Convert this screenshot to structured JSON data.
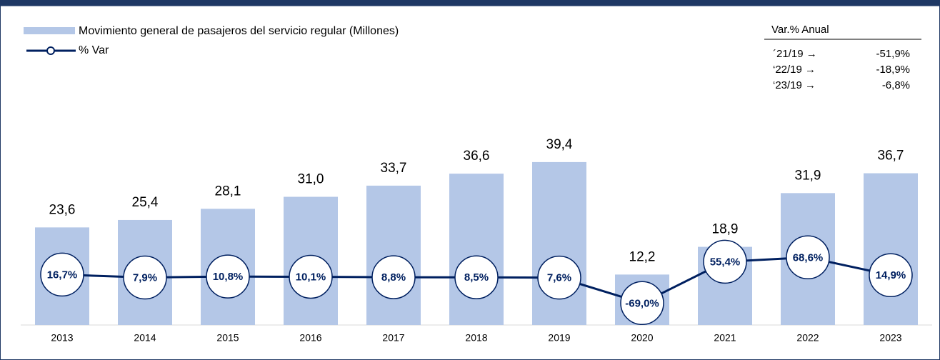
{
  "chart_data": {
    "type": "bar-line",
    "categories": [
      "2013",
      "2014",
      "2015",
      "2016",
      "2017",
      "2018",
      "2019",
      "2020",
      "2021",
      "2022",
      "2023"
    ],
    "series": [
      {
        "name": "Movimiento general de pasajeros del servicio regular (Millones)",
        "type": "bar",
        "color": "#b4c7e7",
        "values": [
          23.6,
          25.4,
          28.1,
          31.0,
          33.7,
          36.6,
          39.4,
          12.2,
          18.9,
          31.9,
          36.7
        ],
        "value_labels": [
          "23,6",
          "25,4",
          "28,1",
          "31,0",
          "33,7",
          "36,6",
          "39,4",
          "12,2",
          "18,9",
          "31,9",
          "36,7"
        ]
      },
      {
        "name": "% Var",
        "type": "line",
        "axis": "y2",
        "color": "#002060",
        "values": [
          16.7,
          7.9,
          10.8,
          10.1,
          8.8,
          8.5,
          7.6,
          -69.0,
          55.4,
          68.6,
          14.9
        ],
        "value_labels": [
          "16,7%",
          "7,9%",
          "10,8%",
          "10,1%",
          "8,8%",
          "8,5%",
          "7,6%",
          "-69,0%",
          "55,4%",
          "68,6%",
          "14,9%"
        ]
      }
    ],
    "ylim": [
      0,
      45
    ],
    "y2lim": [
      -135,
      425
    ],
    "annotation": {
      "title": "Var.% Anual",
      "rows": [
        [
          "´21/19 →",
          "-51,9%"
        ],
        [
          "‘22/19 →",
          "-18,9%"
        ],
        [
          "‘23/19 →",
          "-6,8%"
        ]
      ]
    }
  }
}
